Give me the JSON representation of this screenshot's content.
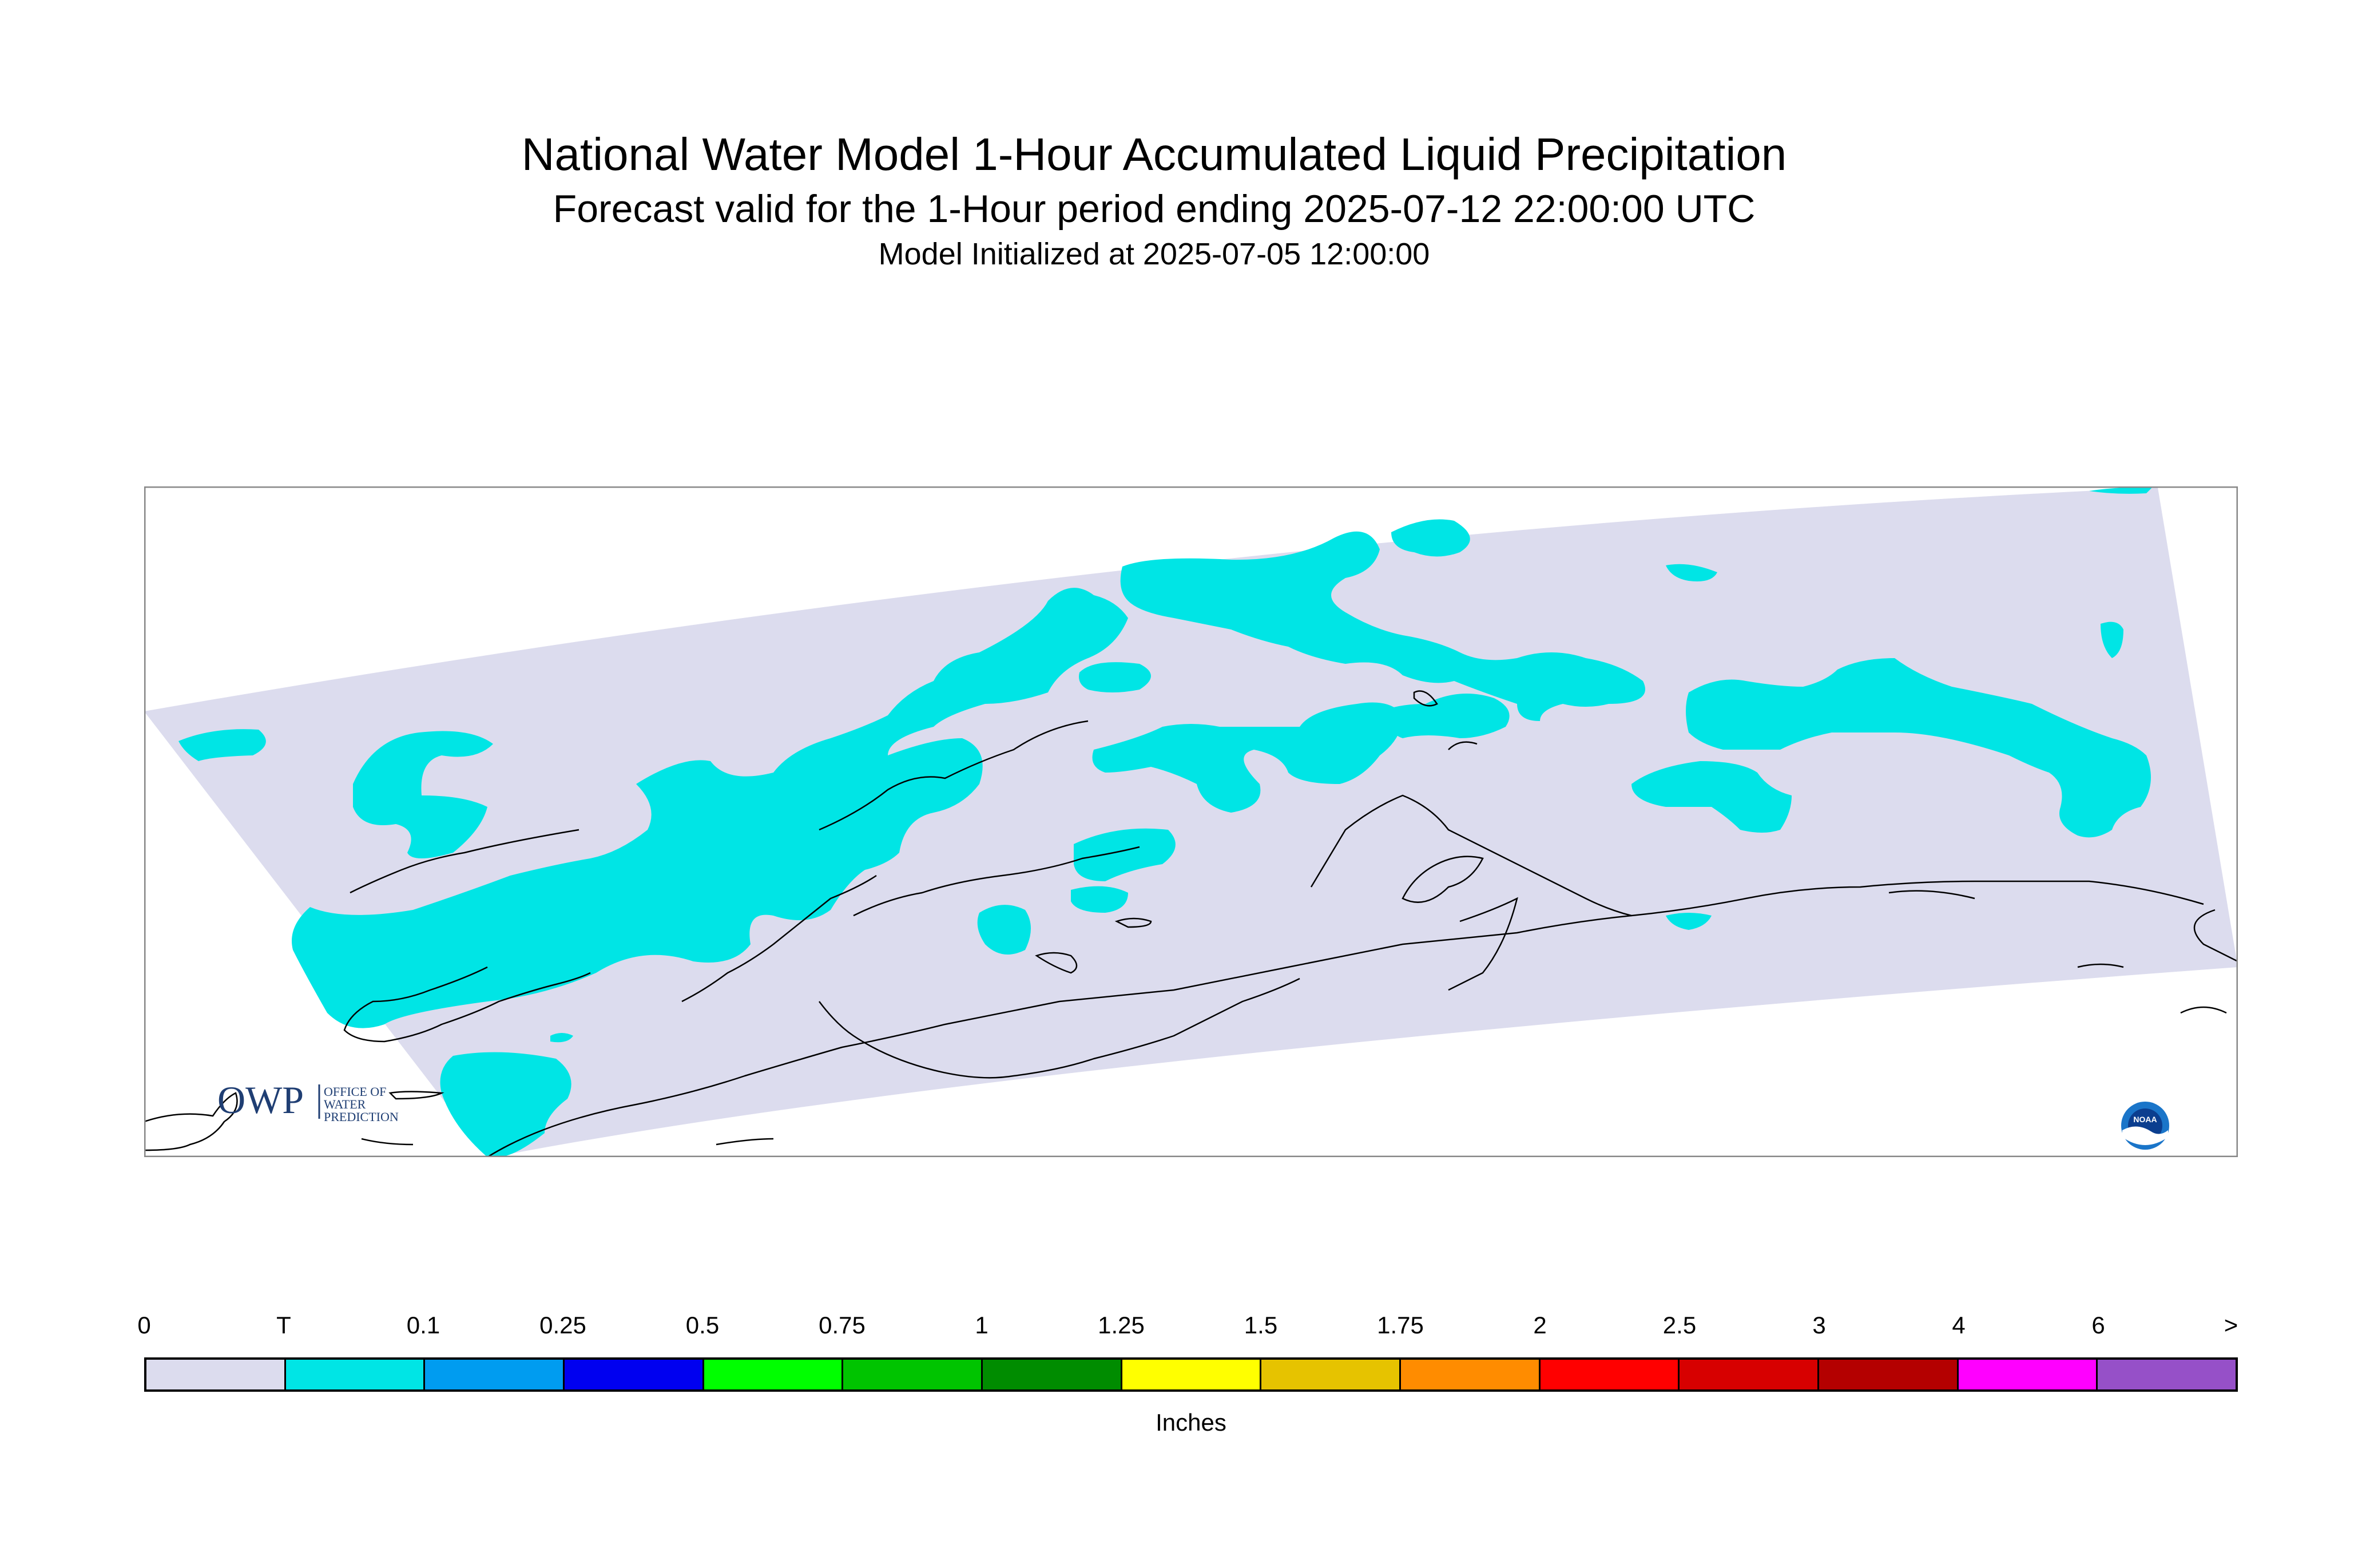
{
  "title": "National Water Model 1-Hour Accumulated Liquid Precipitation",
  "subtitle": "Forecast valid for the 1-Hour period ending 2025-07-12 22:00:00 UTC",
  "init_line": "Model Initialized at 2025-07-05 12:00:00",
  "logos": {
    "owp_mark": "OWP",
    "owp_line1": "OFFICE OF",
    "owp_line2": "WATER",
    "owp_line3": "PREDICTION",
    "noaa": "NOAA"
  },
  "colors": {
    "domain_fill": "#dcdcee",
    "precip_trace": "#00e5e5",
    "coastline": "#000000",
    "frame": "#888888"
  },
  "legend": {
    "units": "Inches",
    "labels": [
      "0",
      "T",
      "0.1",
      "0.25",
      "0.5",
      "0.75",
      "1",
      "1.25",
      "1.5",
      "1.75",
      "2",
      "2.5",
      "3",
      "4",
      "6",
      ">"
    ],
    "colors": [
      "#dcdcee",
      "#00e5e5",
      "#009cf0",
      "#0000f0",
      "#00ff00",
      "#00c400",
      "#008c00",
      "#ffff00",
      "#e6c300",
      "#ff8c00",
      "#ff0000",
      "#d70000",
      "#b40000",
      "#ff00ff",
      "#9650c8"
    ]
  },
  "map": {
    "precip_category_shown": "T",
    "region_icon": "alaska-coastline"
  }
}
